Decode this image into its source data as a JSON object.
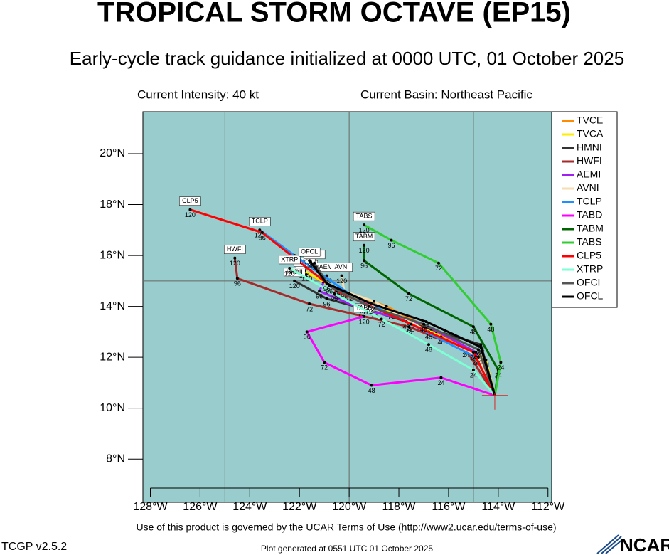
{
  "chart_data": {
    "type": "track",
    "title": "TROPICAL STORM OCTAVE (EP15)",
    "subtitle": "Early-cycle track guidance initialized at 0000 UTC, 01 October 2025",
    "intensity": "Current Intensity: 40 kt",
    "basin": "Current Basin: Northeast Pacific",
    "terms": "Use of this product is governed by the UCAR Terms of Use (http://www2.ucar.edu/terms-of-use)",
    "version": "TCGP v2.5.2",
    "generated": "Plot generated at 0551 UTC   01 October 2025",
    "logo": "NCAR",
    "xlim": [
      -128.3,
      -111.85
    ],
    "ylim": [
      6.3,
      21.65
    ],
    "xticks": [
      {
        "value": -128,
        "label": "128°W"
      },
      {
        "value": -126,
        "label": "126°W"
      },
      {
        "value": -124,
        "label": "124°W"
      },
      {
        "value": -122,
        "label": "122°W"
      },
      {
        "value": -120,
        "label": "120°W"
      },
      {
        "value": -118,
        "label": "118°W"
      },
      {
        "value": -116,
        "label": "116°W"
      },
      {
        "value": -114,
        "label": "114°W"
      },
      {
        "value": -112,
        "label": "112°W"
      }
    ],
    "yticks": [
      {
        "value": 8,
        "label": "8°N"
      },
      {
        "value": 10,
        "label": "10°N"
      },
      {
        "value": 12,
        "label": "12°N"
      },
      {
        "value": 14,
        "label": "14°N"
      },
      {
        "value": 16,
        "label": "16°N"
      },
      {
        "value": 18,
        "label": "18°N"
      },
      {
        "value": 20,
        "label": "20°N"
      }
    ],
    "xgrid": [
      -125,
      -120,
      -115
    ],
    "ygrid": [
      15
    ],
    "ocean_color": "#99cccc",
    "hours": [
      0,
      24,
      48,
      72,
      96,
      120
    ],
    "initial_position": {
      "lon": -114.14,
      "lat": 10.5
    },
    "series": [
      {
        "name": "TVCE",
        "color": "#ff8c00",
        "lon": [
          -114.14,
          -114.6,
          -116.5,
          -118.5,
          -120.5,
          -121.7
        ],
        "lat": [
          10.5,
          12.0,
          13.0,
          14.0,
          14.7,
          15.3
        ]
      },
      {
        "name": "TVCA",
        "color": "#ffee00",
        "lon": [
          -114.14,
          -114.5,
          -116.3,
          -118.3,
          -120.4,
          -121.8
        ],
        "lat": [
          10.5,
          11.9,
          12.8,
          13.8,
          14.6,
          15.4
        ]
      },
      {
        "name": "HMNI",
        "color": "#333333",
        "lon": [
          -114.14,
          -114.7,
          -116.7,
          -119.0,
          -120.9,
          -122.2
        ],
        "lat": [
          10.5,
          12.5,
          13.1,
          13.8,
          14.3,
          15.0
        ]
      },
      {
        "name": "HWFI",
        "color": "#a52a2a",
        "lon": [
          -114.14,
          -115.3,
          -117.6,
          -121.6,
          -124.5,
          -124.6
        ],
        "lat": [
          10.5,
          12.3,
          13.2,
          14.1,
          15.1,
          15.9
        ]
      },
      {
        "name": "AEMI",
        "color": "#a020f0",
        "lon": [
          -114.14,
          -114.9,
          -117.0,
          -119.5,
          -121.2,
          -120.9
        ],
        "lat": [
          10.5,
          12.2,
          13.3,
          13.9,
          14.6,
          15.2
        ]
      },
      {
        "name": "AVNI",
        "color": "#f5deb3",
        "lon": [
          -114.14,
          -114.8,
          -116.8,
          -119.0,
          -120.2,
          -120.3
        ],
        "lat": [
          10.5,
          12.0,
          13.0,
          14.2,
          14.6,
          15.2
        ]
      },
      {
        "name": "TCLP",
        "color": "#1e90ff",
        "lon": [
          -114.14,
          -114.9,
          -117.7,
          -120.0,
          -122.2,
          -123.6
        ],
        "lat": [
          10.5,
          12.0,
          13.4,
          14.5,
          16.0,
          17.0
        ]
      },
      {
        "name": "TABD",
        "color": "#ff00ff",
        "lon": [
          -114.14,
          -116.3,
          -119.1,
          -121.0,
          -121.7,
          -119.4
        ],
        "lat": [
          10.5,
          11.2,
          10.9,
          11.8,
          13.0,
          13.6
        ]
      },
      {
        "name": "TABM",
        "color": "#006400",
        "lon": [
          -114.14,
          -114.0,
          -115.0,
          -117.6,
          -119.4,
          -119.4
        ],
        "lat": [
          10.5,
          11.5,
          13.2,
          14.5,
          15.8,
          16.4
        ]
      },
      {
        "name": "TABS",
        "color": "#32cd32",
        "lon": [
          -114.14,
          -113.9,
          -114.3,
          -116.4,
          -118.3,
          -119.4
        ],
        "lat": [
          10.5,
          11.8,
          13.3,
          15.7,
          16.6,
          17.2
        ]
      },
      {
        "name": "CLP5",
        "color": "#ff0000",
        "lon": [
          -114.14,
          -115.0,
          -117.5,
          -120.5,
          -123.5,
          -126.4
        ],
        "lat": [
          10.5,
          12.2,
          13.3,
          14.6,
          16.9,
          17.8
        ]
      },
      {
        "name": "XTRP",
        "color": "#7fffd4",
        "lon": [
          -114.14,
          -115.0,
          -116.8,
          -118.7,
          -120.6,
          -122.4
        ],
        "lat": [
          10.5,
          11.5,
          12.5,
          13.5,
          14.5,
          15.5
        ]
      },
      {
        "name": "OFCI",
        "color": "#555555",
        "lon": [
          -114.14,
          -114.8,
          -117.0,
          -119.2,
          -120.8,
          -121.4
        ],
        "lat": [
          10.5,
          12.3,
          13.3,
          14.0,
          14.8,
          15.7
        ]
      },
      {
        "name": "OFCL",
        "color": "#000000",
        "lon": [
          -114.14,
          -114.7,
          -116.9,
          -119.1,
          -120.9,
          -121.6
        ],
        "lat": [
          10.5,
          12.4,
          13.4,
          14.1,
          14.9,
          15.8
        ]
      }
    ]
  }
}
